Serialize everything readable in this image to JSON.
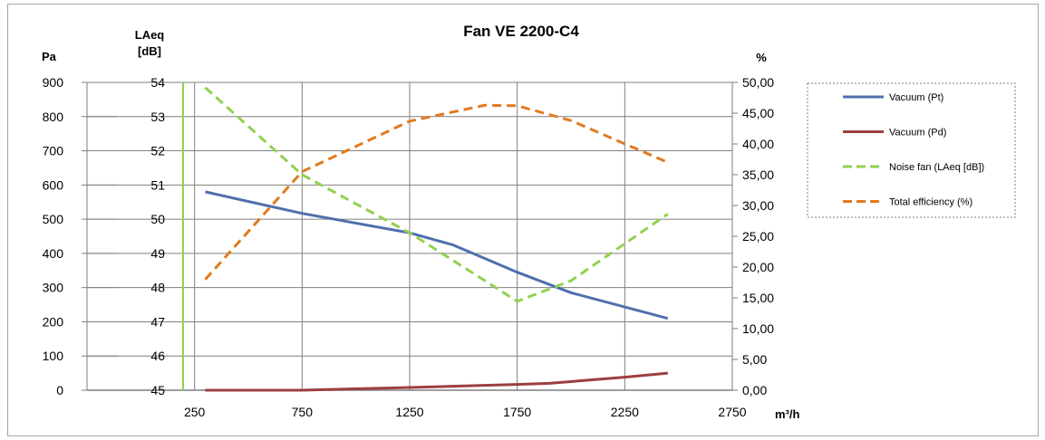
{
  "chart_data": {
    "type": "line",
    "title": "Fan VE 2200-C4",
    "xlabel": "m³/h",
    "x_ticks": [
      "250",
      "750",
      "1250",
      "1750",
      "2250",
      "2750"
    ],
    "xlim": [
      -250,
      2750
    ],
    "axes": {
      "pa": {
        "label": "Pa",
        "ylim": [
          0,
          900
        ],
        "ticks": [
          "0",
          "100",
          "200",
          "300",
          "400",
          "500",
          "600",
          "700",
          "800",
          "900"
        ]
      },
      "laeq": {
        "label_line1": "LAeq",
        "label_line2": "[dB]",
        "ylim": [
          45,
          54
        ],
        "ticks": [
          "45",
          "46",
          "47",
          "48",
          "49",
          "50",
          "51",
          "52",
          "53",
          "54"
        ]
      },
      "pct": {
        "label": "%",
        "ylim": [
          0,
          50
        ],
        "ticks": [
          "0,00",
          "5,00",
          "10,00",
          "15,00",
          "20,00",
          "25,00",
          "30,00",
          "35,00",
          "40,00",
          "45,00",
          "50,00"
        ]
      }
    },
    "grid": true,
    "legend_position": "right",
    "series": [
      {
        "name": "Vacuum (Pt)",
        "axis": "pa",
        "color": "#4f6fad",
        "dash": false,
        "x": [
          300,
          750,
          1250,
          1450,
          1750,
          2000,
          2450
        ],
        "y": [
          580,
          517,
          460,
          425,
          345,
          285,
          210
        ]
      },
      {
        "name": "Vacuum (Pd)",
        "axis": "pa",
        "color": "#9c3f3f",
        "dash": false,
        "x": [
          300,
          750,
          1250,
          1750,
          1900,
          2250,
          2450
        ],
        "y": [
          0,
          0,
          8,
          17,
          20,
          38,
          50
        ]
      },
      {
        "name": "Noise fan (LAeq [dB])",
        "axis": "laeq",
        "color": "#92d050",
        "dash": true,
        "x": [
          300,
          750,
          1250,
          1750,
          2000,
          2450
        ],
        "y": [
          53.85,
          51.3,
          49.6,
          47.6,
          48.2,
          50.15
        ]
      },
      {
        "name": "Total efficiency (%)",
        "axis": "pct",
        "color": "#e07b1f",
        "dash": true,
        "x": [
          300,
          750,
          1250,
          1600,
          1750,
          2000,
          2450
        ],
        "y": [
          18,
          35.5,
          43.7,
          46.3,
          46.2,
          43.8,
          37
        ]
      }
    ],
    "colors": {
      "gridline": "#7f7f7f",
      "noise_axis_line": "#92d050",
      "frame": "#a6a6a6"
    }
  }
}
